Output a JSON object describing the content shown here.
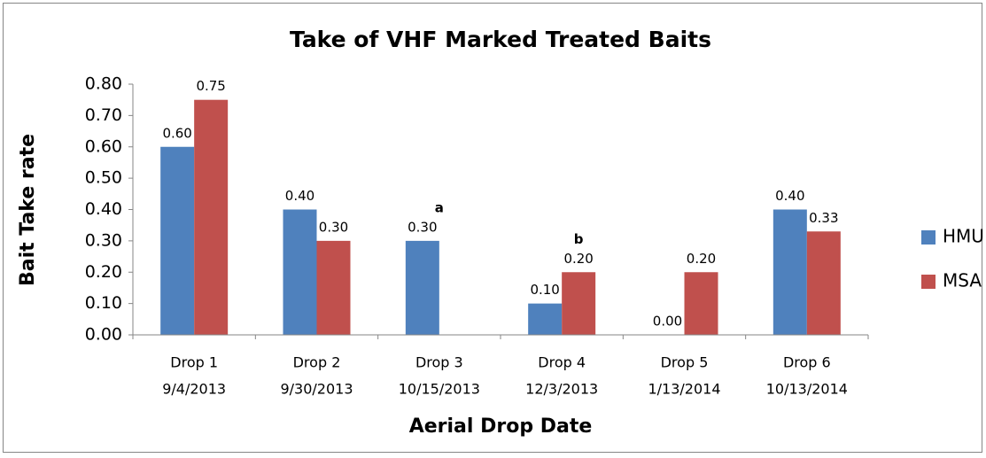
{
  "chart_data": {
    "type": "bar",
    "title": "Take of VHF Marked Treated Baits",
    "x_label": "Aerial Drop Date",
    "y_label": "Bait Take rate",
    "categories": [
      [
        "Drop 1",
        "9/4/2013"
      ],
      [
        "Drop 2",
        "9/30/2013"
      ],
      [
        "Drop 3",
        "10/15/2013"
      ],
      [
        "Drop 4",
        "12/3/2013"
      ],
      [
        "Drop 5",
        "1/13/2014"
      ],
      [
        "Drop 6",
        "10/13/2014"
      ]
    ],
    "series": [
      {
        "name": "HMU",
        "color": "#4f81bd",
        "values": [
          0.6,
          0.4,
          0.3,
          0.1,
          0,
          0.4
        ],
        "value_labels": [
          "0.60",
          "0.40",
          "0.30",
          "0.10",
          "0.00",
          "0.40"
        ]
      },
      {
        "name": "MSA",
        "color": "#c0504d",
        "values": [
          0.75,
          0.3,
          null,
          0.2,
          0.2,
          0.33
        ],
        "value_labels": [
          "0.75",
          "0.30",
          null,
          "0.20",
          "0.20",
          "0.33"
        ]
      }
    ],
    "annotations": [
      "a",
      "b"
    ],
    "ylim": [
      0,
      0.8
    ],
    "yticks": [
      {
        "value": 0,
        "label": "0.00"
      },
      {
        "value": 0.1,
        "label": "0.10"
      },
      {
        "value": 0.2,
        "label": "0.20"
      },
      {
        "value": 0.3,
        "label": "0.30"
      },
      {
        "value": 0.4,
        "label": "0.40"
      },
      {
        "value": 0.5,
        "label": "0.50"
      },
      {
        "value": 0.6,
        "label": "0.60"
      },
      {
        "value": 0.7,
        "label": "0.70"
      },
      {
        "value": 0.8,
        "label": "0.80"
      }
    ],
    "legend": "right"
  }
}
